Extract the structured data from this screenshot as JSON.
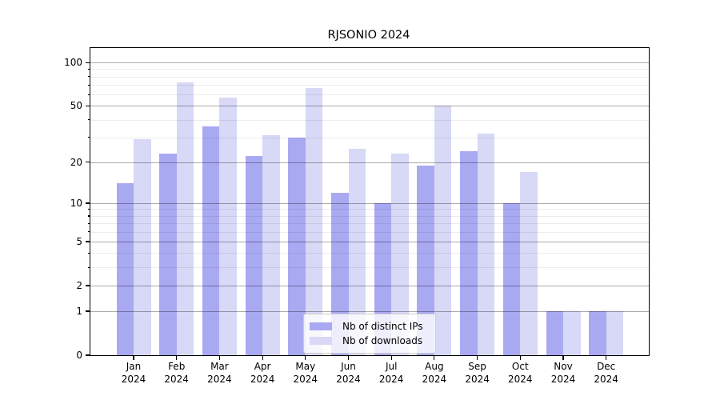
{
  "title": "RJSONIO 2024",
  "chart_data": {
    "type": "bar",
    "title": "RJSONIO 2024",
    "categories": [
      "Jan",
      "Feb",
      "Mar",
      "Apr",
      "May",
      "Jun",
      "Jul",
      "Aug",
      "Sep",
      "Oct",
      "Nov",
      "Dec"
    ],
    "x_year_label": "2024",
    "series": [
      {
        "name": "Nb of distinct IPs",
        "color": "#a9a9f2",
        "values": [
          14,
          23,
          36,
          22,
          30,
          12,
          10,
          19,
          24,
          10,
          1,
          1
        ]
      },
      {
        "name": "Nb of downloads",
        "color": "#d8d8f7",
        "values": [
          29,
          73,
          57,
          31,
          67,
          25,
          23,
          50,
          32,
          17,
          1,
          1
        ]
      }
    ],
    "yscale": "log1p",
    "ymax": 126,
    "yticks_major": [
      0,
      1,
      2,
      5,
      10,
      20,
      50,
      100
    ],
    "yticks_minor": [
      3,
      4,
      6,
      7,
      8,
      9,
      30,
      40,
      60,
      70,
      80,
      90
    ],
    "grid": "both",
    "legend": {
      "position": "lower-center",
      "entries": [
        "Nb of distinct IPs",
        "Nb of downloads"
      ]
    },
    "colors": {
      "axis": "#000000",
      "major_grid_rgba": "rgba(0,0,0,0.33)",
      "minor_grid_rgba": "rgba(0,0,0,0.075)"
    }
  }
}
